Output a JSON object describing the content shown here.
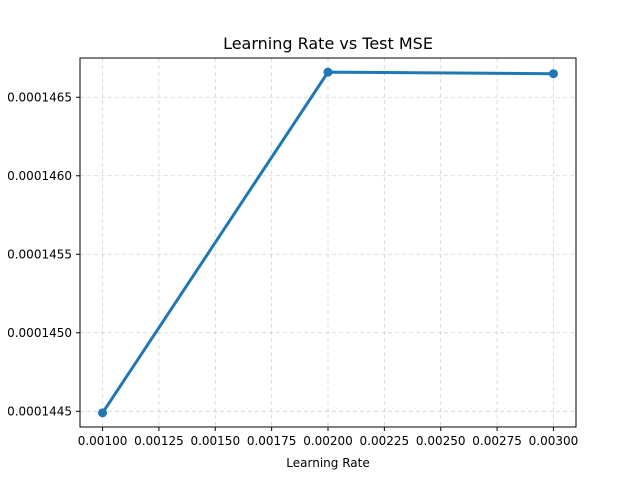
{
  "chart_data": {
    "type": "line",
    "title": "Learning Rate vs Test MSE",
    "xlabel": "Learning Rate",
    "ylabel": "",
    "x": [
      0.001,
      0.002,
      0.003
    ],
    "series": [
      {
        "values": [
          0.00014449,
          0.00014666,
          0.00014665
        ],
        "color": "#1f77b4"
      }
    ],
    "xlim": [
      0.0009,
      0.0031
    ],
    "ylim": [
      0.0001444,
      0.00014675
    ],
    "xticks": [
      0.001,
      0.00125,
      0.0015,
      0.00175,
      0.002,
      0.00225,
      0.0025,
      0.00275,
      0.003
    ],
    "xtick_labels": [
      "0.00100",
      "0.00125",
      "0.00150",
      "0.00175",
      "0.00200",
      "0.00225",
      "0.00250",
      "0.00275",
      "0.00300"
    ],
    "yticks": [
      0.0001445,
      0.000145,
      0.0001455,
      0.000146,
      0.0001465
    ],
    "ytick_labels": [
      "0.0001445",
      "0.0001450",
      "0.0001455",
      "0.0001460",
      "0.0001465"
    ],
    "grid": true,
    "marker": "circle"
  }
}
